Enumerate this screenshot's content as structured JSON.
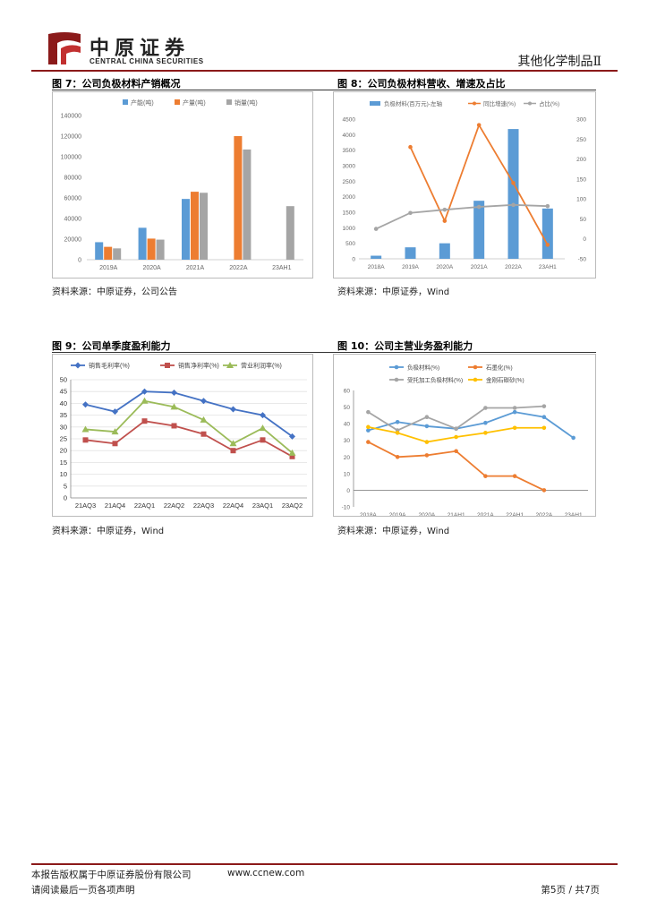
{
  "header": {
    "company_cn": "中原证券",
    "company_en": "CENTRAL CHINA SECURITIES",
    "category": "其他化学制品Ⅱ"
  },
  "figures": [
    {
      "title": "图 7：公司负极材料产销概况",
      "source": "资料来源：中原证券，公司公告",
      "chart_data": {
        "type": "bar",
        "categories": [
          "2019A",
          "2020A",
          "2021A",
          "2022A",
          "23AH1"
        ],
        "series": [
          {
            "name": "产能(吨)",
            "color": "#5b9bd5",
            "values": [
              17000,
              31000,
              59000,
              null,
              null
            ]
          },
          {
            "name": "产量(吨)",
            "color": "#ed7d31",
            "values": [
              12500,
              20500,
              66000,
              120000,
              null
            ]
          },
          {
            "name": "销量(吨)",
            "color": "#a5a5a5",
            "values": [
              11000,
              19500,
              65000,
              107000,
              52000
            ]
          }
        ],
        "ylim": [
          0,
          140000
        ],
        "yticks": [
          "0",
          "20000",
          "40000",
          "60000",
          "80000",
          "100000",
          "120000",
          "140000"
        ]
      }
    },
    {
      "title": "图 8：公司负极材料营收、增速及占比",
      "source": "资料来源：中原证券，Wind",
      "chart_data": {
        "type": "bar+line",
        "categories": [
          "2018A",
          "2019A",
          "2020A",
          "2021A",
          "2022A",
          "23AH1"
        ],
        "bar_series": {
          "name": "负极材料(百万元)-左轴",
          "color": "#5b9bd5",
          "values": [
            100,
            370,
            500,
            1870,
            4180,
            1620
          ]
        },
        "line_series": [
          {
            "name": "同比增速(%)",
            "color": "#ed7d31",
            "values": [
              null,
              230,
              45,
              285,
              140,
              -15
            ]
          },
          {
            "name": "占比(%)",
            "color": "#a5a5a5",
            "values": [
              25,
              65,
              73,
              80,
              85,
              82
            ]
          }
        ],
        "ylim_left": [
          0,
          4500
        ],
        "ylim_right": [
          -50,
          300
        ],
        "yticks_left": [
          "0",
          "500",
          "1000",
          "1500",
          "2000",
          "2500",
          "3000",
          "3500",
          "4000",
          "4500"
        ],
        "yticks_right": [
          "-50",
          "0",
          "50",
          "100",
          "150",
          "200",
          "250",
          "300"
        ]
      }
    },
    {
      "title": "图 9：公司单季度盈利能力",
      "source": "资料来源：中原证券，Wind",
      "chart_data": {
        "type": "line",
        "categories": [
          "21AQ3",
          "21AQ4",
          "22AQ1",
          "22AQ2",
          "22AQ3",
          "22AQ4",
          "23AQ1",
          "23AQ2"
        ],
        "series": [
          {
            "name": "销售毛利率(%)",
            "color": "#4472c4",
            "marker": "diamond",
            "values": [
              39.5,
              36.5,
              45,
              44.5,
              41,
              37.5,
              35,
              26
            ]
          },
          {
            "name": "销售净利率(%)",
            "color": "#c0504d",
            "marker": "square",
            "values": [
              24.5,
              23,
              32.5,
              30.5,
              27,
              20,
              24.5,
              17.5
            ]
          },
          {
            "name": "营业利润率(%)",
            "color": "#9bbb59",
            "marker": "triangle",
            "values": [
              29,
              28,
              41,
              38.5,
              33,
              23,
              29.5,
              19
            ]
          }
        ],
        "ylim": [
          0,
          50
        ],
        "yticks": [
          "0",
          "5",
          "10",
          "15",
          "20",
          "25",
          "30",
          "35",
          "40",
          "45",
          "50"
        ]
      }
    },
    {
      "title": "图 10：公司主营业务盈利能力",
      "source": "资料来源：中原证券，Wind",
      "chart_data": {
        "type": "line",
        "categories": [
          "2018A",
          "2019A",
          "2020A",
          "21AH1",
          "2021A",
          "22AH1",
          "2022A",
          "23AH1"
        ],
        "series": [
          {
            "name": "负极材料(%)",
            "color": "#5b9bd5",
            "values": [
              36,
              41,
              38.5,
              37,
              40.5,
              47,
              44,
              31.5
            ]
          },
          {
            "name": "石墨化(%)",
            "color": "#ed7d31",
            "values": [
              29,
              20,
              21,
              23.5,
              8.5,
              8.5,
              0,
              null
            ]
          },
          {
            "name": "受托加工负极材料(%)",
            "color": "#a5a5a5",
            "values": [
              47,
              36,
              44,
              37,
              49.5,
              49.5,
              50.5,
              null
            ]
          },
          {
            "name": "金刚石碳砂(%)",
            "color": "#ffc000",
            "values": [
              38,
              34.5,
              29,
              32,
              34.5,
              37.5,
              37.5,
              null
            ]
          }
        ],
        "ylim": [
          -10,
          60
        ],
        "yticks": [
          "-10",
          "0",
          "10",
          "20",
          "30",
          "40",
          "50",
          "60"
        ]
      }
    }
  ],
  "footer": {
    "copyright": "本报告版权属于中原证券股份有限公司",
    "website": "www.ccnew.com",
    "disclaimer": "请阅读最后一页各项声明",
    "page": "第5页  /  共7页"
  }
}
